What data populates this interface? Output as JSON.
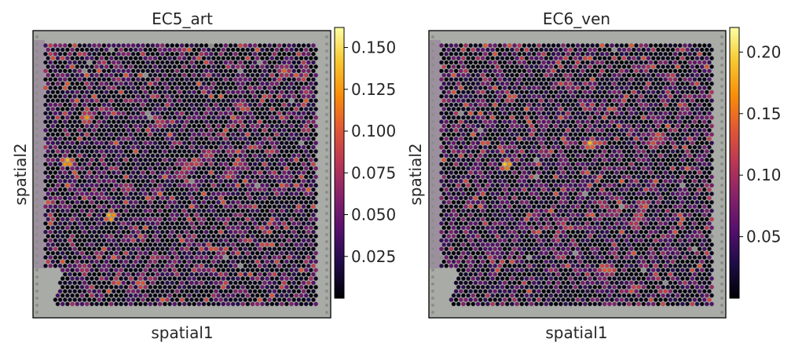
{
  "chart_data": [
    {
      "type": "heatmap",
      "subtype": "spatial-spot-map",
      "title": "EC5_art",
      "xlabel": "spatial1",
      "ylabel": "spatial2",
      "colormap": "inferno",
      "color_range": [
        0.0,
        0.162
      ],
      "colorbar_ticks": [
        "0.025",
        "0.050",
        "0.075",
        "0.100",
        "0.125",
        "0.150"
      ],
      "colorbar_tick_values": [
        0.025,
        0.05,
        0.075,
        0.1,
        0.125,
        0.15
      ],
      "spot_values_note": "mostly 0–0.06 with sparse hotspots up to ~0.16",
      "hotspots_rel": [
        [
          0.55,
          0.45,
          0.11
        ],
        [
          0.52,
          0.47,
          0.1
        ],
        [
          0.5,
          0.5,
          0.09
        ],
        [
          0.6,
          0.42,
          0.1
        ],
        [
          0.68,
          0.5,
          0.09
        ],
        [
          0.72,
          0.46,
          0.08
        ],
        [
          0.08,
          0.45,
          0.16
        ],
        [
          0.24,
          0.66,
          0.16
        ],
        [
          0.15,
          0.28,
          0.13
        ],
        [
          0.42,
          0.3,
          0.1
        ],
        [
          0.88,
          0.1,
          0.11
        ],
        [
          0.96,
          0.18,
          0.08
        ],
        [
          0.4,
          0.82,
          0.09
        ],
        [
          0.65,
          0.8,
          0.08
        ],
        [
          0.14,
          0.86,
          0.09
        ],
        [
          0.3,
          0.55,
          0.09
        ],
        [
          0.35,
          0.92,
          0.12
        ],
        [
          0.78,
          0.55,
          0.07
        ]
      ],
      "grid": false
    },
    {
      "type": "heatmap",
      "subtype": "spatial-spot-map",
      "title": "EC6_ven",
      "xlabel": "spatial1",
      "ylabel": "spatial2",
      "colormap": "inferno",
      "color_range": [
        0.0,
        0.22
      ],
      "colorbar_ticks": [
        "0.05",
        "0.10",
        "0.15",
        "0.20"
      ],
      "colorbar_tick_values": [
        0.05,
        0.1,
        0.15,
        0.2
      ],
      "spot_values_note": "mostly 0–0.06 with sparse hotspots up to ~0.22",
      "hotspots_rel": [
        [
          0.47,
          0.15,
          0.12
        ],
        [
          0.85,
          0.12,
          0.13
        ],
        [
          0.78,
          0.38,
          0.14
        ],
        [
          0.8,
          0.35,
          0.15
        ],
        [
          0.55,
          0.38,
          0.2
        ],
        [
          0.24,
          0.46,
          0.22
        ],
        [
          0.75,
          0.62,
          0.15
        ],
        [
          0.73,
          0.66,
          0.14
        ],
        [
          0.71,
          0.69,
          0.13
        ],
        [
          0.6,
          0.86,
          0.16
        ],
        [
          0.62,
          0.87,
          0.14
        ],
        [
          0.45,
          0.45,
          0.09
        ],
        [
          0.18,
          0.3,
          0.08
        ],
        [
          0.3,
          0.7,
          0.08
        ],
        [
          0.9,
          0.25,
          0.1
        ],
        [
          0.12,
          0.6,
          0.07
        ],
        [
          0.2,
          0.78,
          0.08
        ]
      ],
      "grid": false
    }
  ]
}
